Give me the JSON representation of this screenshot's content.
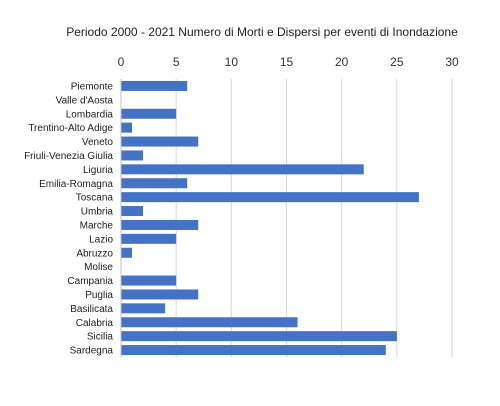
{
  "chart_data": {
    "type": "bar",
    "orientation": "horizontal",
    "title": "Periodo 2000 - 2021 Numero di Morti e Dispersi per eventi di Inondazione",
    "xlabel": "",
    "ylabel": "",
    "xlim": [
      0,
      30
    ],
    "xticks": [
      0,
      5,
      10,
      15,
      20,
      25,
      30
    ],
    "x_axis_position": "top",
    "grid": "vertical",
    "legend": "none",
    "bar_color": "#4472c4",
    "categories": [
      "Piemonte",
      "Valle d'Aosta",
      "Lombardia",
      "Trentino-Alto Adige",
      "Veneto",
      "Friuli-Venezia Giulia",
      "Liguria",
      "Emilia-Romagna",
      "Toscana",
      "Umbria",
      "Marche",
      "Lazio",
      "Abruzzo",
      "Molise",
      "Campania",
      "Puglia",
      "Basilicata",
      "Calabria",
      "Sicilia",
      "Sardegna"
    ],
    "values": [
      6,
      0,
      5,
      1,
      7,
      2,
      22,
      6,
      27,
      2,
      7,
      5,
      1,
      0,
      5,
      7,
      4,
      16,
      25,
      24
    ]
  }
}
